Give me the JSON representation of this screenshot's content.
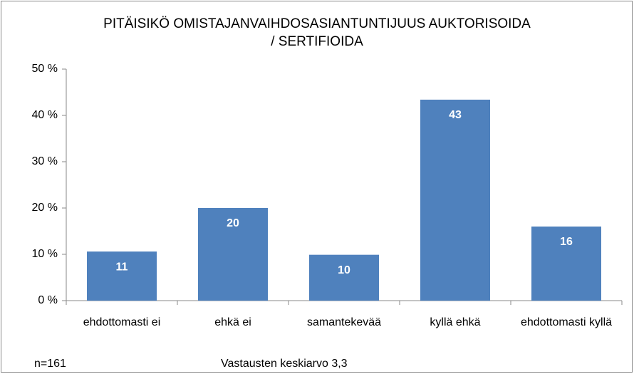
{
  "chart_data": {
    "type": "bar",
    "title": "PITÄISIKÖ OMISTAJANVAIHDOSASIANTUNTIJUUS AUKTORISOIDA / SERTIFIOIDA",
    "categories": [
      "ehdottomasti ei",
      "ehkä ei",
      "samantekevää",
      "kyllä ehkä",
      "ehdottomasti kyllä"
    ],
    "values": [
      10.6,
      20,
      9.9,
      43.4,
      16
    ],
    "value_labels": [
      "11",
      "20",
      "10",
      "43",
      "16"
    ],
    "color": "#4f81bd",
    "ylim": [
      0,
      50
    ],
    "yticks": [
      {
        "value": 0,
        "label": "0 %"
      },
      {
        "value": 10,
        "label": "10 %"
      },
      {
        "value": 20,
        "label": "20 %"
      },
      {
        "value": 30,
        "label": "30 %"
      },
      {
        "value": 40,
        "label": "40 %"
      },
      {
        "value": 50,
        "label": "50 %"
      }
    ],
    "grid": false,
    "notes": [
      "n=161",
      "Vastausten keskiarvo 3,3"
    ]
  }
}
